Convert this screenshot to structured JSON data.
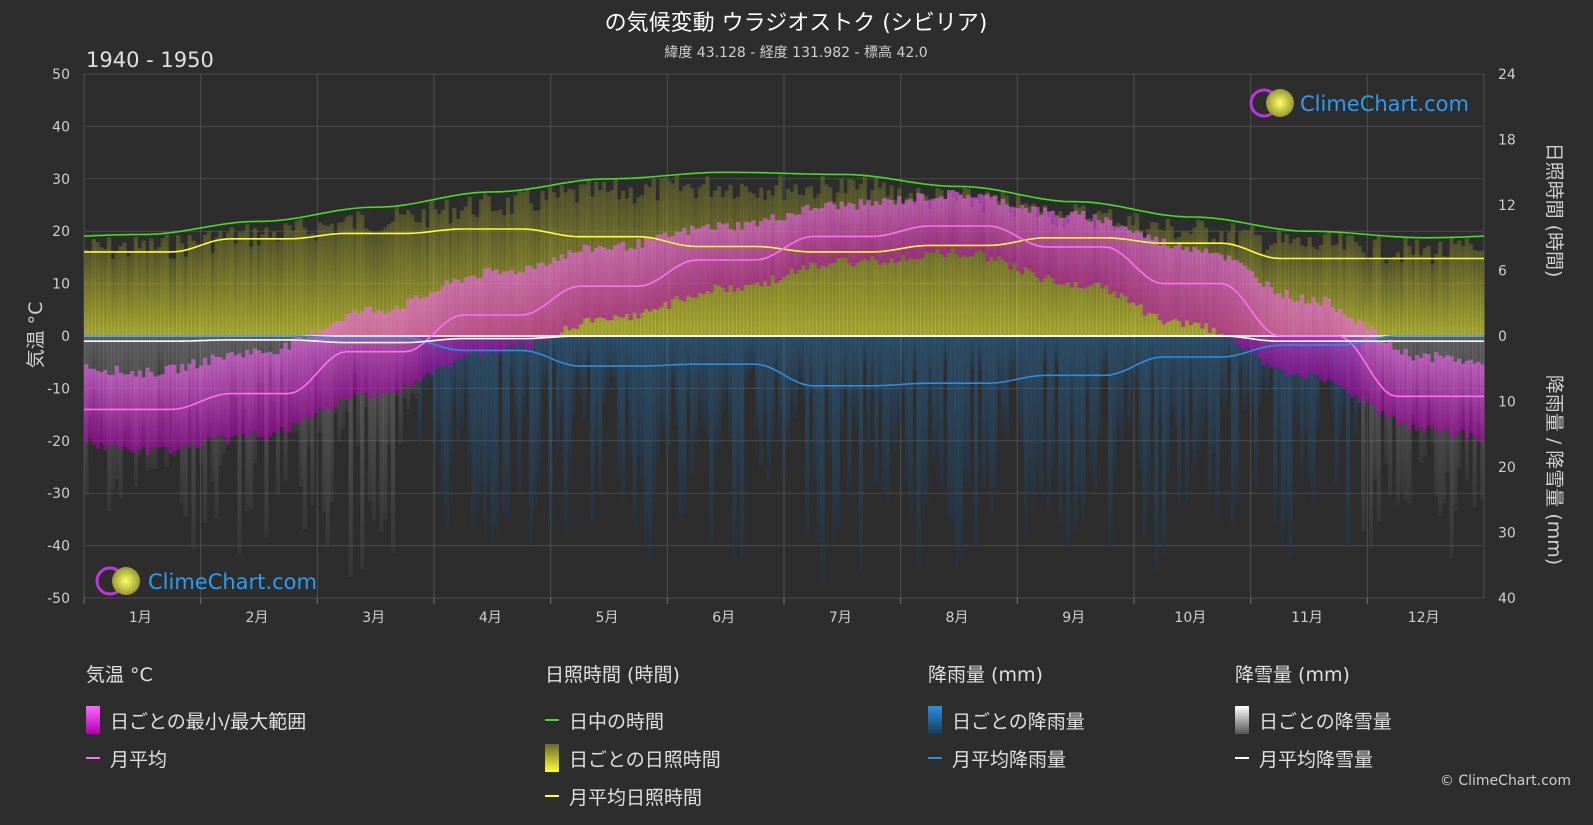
{
  "title": "の気候変動 ウラジオストク (シビリア)",
  "subtitle": "緯度 43.128 - 経度 131.982 - 標高 42.0",
  "period": "1940 - 1950",
  "brand": "ClimeChart.com",
  "copyright": "© ClimeChart.com",
  "colors": {
    "background": "#2d2d2d",
    "temp_range": "#d32ad3",
    "temp_avg": "#ff6ff0",
    "daylight": "#44dd22",
    "sunshine_daily": "#c8c832",
    "sunshine_avg": "#ffff33",
    "rain": "#1f7fd6",
    "rain_avg": "#2a8fe0",
    "snow": "#bdbdbd",
    "snow_avg": "#ffffff",
    "brand": "#2a9df4"
  },
  "legend": {
    "temp": {
      "title": "気温 °C",
      "range": "日ごとの最小/最大範囲",
      "avg": "月平均"
    },
    "sun": {
      "title": "日照時間 (時間)",
      "daylight": "日中の時間",
      "daily": "日ごとの日照時間",
      "avg": "月平均日照時間"
    },
    "rain": {
      "title": "降雨量 (mm)",
      "daily": "日ごとの降雨量",
      "avg": "月平均降雨量"
    },
    "snow": {
      "title": "降雪量 (mm)",
      "daily": "日ごとの降雪量",
      "avg": "月平均降雪量"
    }
  },
  "chart_data": {
    "type": "line",
    "x_label_months": [
      "1月",
      "2月",
      "3月",
      "4月",
      "5月",
      "6月",
      "7月",
      "8月",
      "9月",
      "10月",
      "11月",
      "12月"
    ],
    "left_axis": {
      "label": "気温 °C",
      "ticks": [
        50,
        40,
        30,
        20,
        10,
        0,
        -10,
        -20,
        -30,
        -40,
        -50
      ],
      "range": [
        -50,
        50
      ]
    },
    "right_axis_top": {
      "label": "日照時間 (時間)",
      "ticks": [
        24,
        18,
        12,
        6,
        0
      ],
      "range": [
        0,
        24
      ]
    },
    "right_axis_bottom": {
      "label": "降雨量 / 降雪量 (mm)",
      "ticks": [
        0,
        10,
        20,
        30,
        40
      ],
      "range": [
        0,
        40
      ]
    },
    "grid": true,
    "series": [
      {
        "name": "日中の時間",
        "unit": "hours",
        "values": [
          9.3,
          10.5,
          11.8,
          13.2,
          14.4,
          15.0,
          14.8,
          13.7,
          12.3,
          10.9,
          9.6,
          9.0
        ]
      },
      {
        "name": "月平均日照時間",
        "unit": "hours",
        "values": [
          7.7,
          8.9,
          9.4,
          9.8,
          9.1,
          8.2,
          7.7,
          8.3,
          9.0,
          8.5,
          7.1,
          7.1
        ]
      },
      {
        "name": "月平均",
        "unit": "°C",
        "values": [
          -14.0,
          -11.0,
          -3.0,
          4.0,
          9.5,
          14.5,
          19.0,
          21.0,
          17.0,
          10.0,
          0.0,
          -11.5
        ]
      },
      {
        "name": "月平均降雨量",
        "unit": "mm",
        "values": [
          0.0,
          0.0,
          0.3,
          2.2,
          4.6,
          4.3,
          7.6,
          7.2,
          6.0,
          3.2,
          1.4,
          0.0
        ]
      },
      {
        "name": "月平均降雪量",
        "unit": "mm",
        "values": [
          0.8,
          0.6,
          1.0,
          0.4,
          0.0,
          0.0,
          0.0,
          0.0,
          0.0,
          0.0,
          0.8,
          0.8
        ]
      }
    ],
    "temp_range": {
      "min": [
        -21,
        -18,
        -10,
        -2,
        4,
        10,
        15,
        17,
        11,
        3,
        -7,
        -17
      ],
      "max": [
        -8,
        -4,
        4,
        11,
        16,
        20,
        24,
        26,
        22,
        16,
        6,
        -5
      ]
    }
  }
}
